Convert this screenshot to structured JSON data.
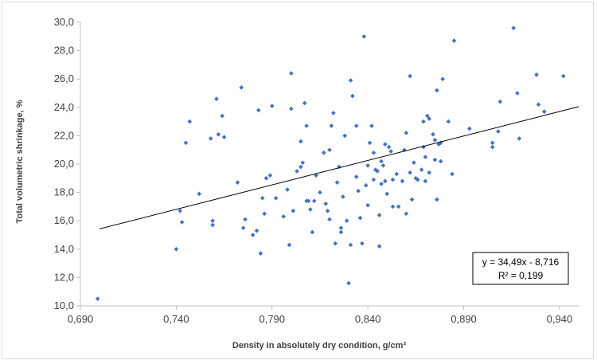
{
  "chart_data": {
    "type": "scatter",
    "xlabel": "Density in absolutely dry condition, g/cm³",
    "ylabel": "Total volumetric shrinkage, %",
    "xlim": [
      0.69,
      0.95
    ],
    "ylim": [
      10.0,
      30.0
    ],
    "x_ticks": [
      "0,690",
      "0,740",
      "0,790",
      "0,840",
      "0,890",
      "0,940"
    ],
    "y_ticks": [
      "10,0",
      "12,0",
      "14,0",
      "16,0",
      "18,0",
      "20,0",
      "22,0",
      "24,0",
      "26,0",
      "28,0",
      "30,0"
    ],
    "grid": "none",
    "marker_color": "#4472c4",
    "trendline": {
      "slope": 34.49,
      "intercept": -8.716,
      "equation": "y = 34,49x - 8,716",
      "r_squared": "R² = 0,199",
      "color": "#000000"
    },
    "points": [
      [
        0.699,
        10.5
      ],
      [
        0.74,
        14.0
      ],
      [
        0.742,
        16.7
      ],
      [
        0.743,
        15.9
      ],
      [
        0.745,
        21.5
      ],
      [
        0.747,
        23.0
      ],
      [
        0.752,
        17.9
      ],
      [
        0.758,
        21.8
      ],
      [
        0.759,
        15.7
      ],
      [
        0.759,
        16.0
      ],
      [
        0.761,
        24.6
      ],
      [
        0.762,
        22.1
      ],
      [
        0.764,
        23.4
      ],
      [
        0.765,
        21.9
      ],
      [
        0.772,
        18.7
      ],
      [
        0.774,
        25.4
      ],
      [
        0.775,
        15.5
      ],
      [
        0.776,
        16.1
      ],
      [
        0.78,
        15.0
      ],
      [
        0.782,
        15.3
      ],
      [
        0.783,
        23.8
      ],
      [
        0.784,
        13.7
      ],
      [
        0.785,
        17.6
      ],
      [
        0.786,
        16.5
      ],
      [
        0.787,
        19.0
      ],
      [
        0.789,
        19.2
      ],
      [
        0.79,
        24.1
      ],
      [
        0.792,
        17.6
      ],
      [
        0.796,
        16.3
      ],
      [
        0.798,
        18.2
      ],
      [
        0.799,
        14.3
      ],
      [
        0.8,
        26.4
      ],
      [
        0.8,
        23.9
      ],
      [
        0.801,
        16.7
      ],
      [
        0.803,
        19.5
      ],
      [
        0.805,
        19.8
      ],
      [
        0.805,
        21.6
      ],
      [
        0.806,
        20.1
      ],
      [
        0.807,
        24.3
      ],
      [
        0.808,
        22.7
      ],
      [
        0.808,
        17.4
      ],
      [
        0.809,
        17.4
      ],
      [
        0.81,
        16.8
      ],
      [
        0.811,
        15.2
      ],
      [
        0.812,
        17.4
      ],
      [
        0.813,
        19.2
      ],
      [
        0.815,
        18.0
      ],
      [
        0.817,
        20.8
      ],
      [
        0.818,
        17.2
      ],
      [
        0.819,
        16.7
      ],
      [
        0.82,
        16.1
      ],
      [
        0.82,
        21.0
      ],
      [
        0.821,
        22.7
      ],
      [
        0.822,
        23.6
      ],
      [
        0.823,
        14.4
      ],
      [
        0.824,
        18.7
      ],
      [
        0.825,
        19.8
      ],
      [
        0.826,
        15.2
      ],
      [
        0.826,
        15.5
      ],
      [
        0.827,
        17.7
      ],
      [
        0.828,
        22.0
      ],
      [
        0.829,
        16.0
      ],
      [
        0.83,
        11.6
      ],
      [
        0.831,
        14.3
      ],
      [
        0.831,
        25.9
      ],
      [
        0.832,
        24.8
      ],
      [
        0.834,
        22.7
      ],
      [
        0.834,
        19.1
      ],
      [
        0.835,
        18.1
      ],
      [
        0.836,
        16.2
      ],
      [
        0.837,
        14.4
      ],
      [
        0.838,
        29.0
      ],
      [
        0.839,
        18.5
      ],
      [
        0.84,
        19.9
      ],
      [
        0.84,
        17.1
      ],
      [
        0.841,
        21.5
      ],
      [
        0.842,
        22.7
      ],
      [
        0.843,
        20.8
      ],
      [
        0.843,
        18.9
      ],
      [
        0.844,
        19.6
      ],
      [
        0.845,
        19.5
      ],
      [
        0.846,
        14.2
      ],
      [
        0.846,
        16.4
      ],
      [
        0.847,
        18.6
      ],
      [
        0.847,
        20.2
      ],
      [
        0.848,
        19.9
      ],
      [
        0.849,
        18.8
      ],
      [
        0.849,
        21.4
      ],
      [
        0.85,
        17.9
      ],
      [
        0.851,
        21.2
      ],
      [
        0.852,
        20.9
      ],
      [
        0.853,
        18.9
      ],
      [
        0.853,
        17.0
      ],
      [
        0.855,
        19.3
      ],
      [
        0.856,
        17.0
      ],
      [
        0.858,
        18.8
      ],
      [
        0.859,
        21.0
      ],
      [
        0.86,
        22.2
      ],
      [
        0.86,
        16.5
      ],
      [
        0.862,
        26.2
      ],
      [
        0.862,
        19.4
      ],
      [
        0.863,
        17.5
      ],
      [
        0.864,
        20.1
      ],
      [
        0.865,
        19.0
      ],
      [
        0.866,
        18.9
      ],
      [
        0.868,
        19.6
      ],
      [
        0.869,
        21.2
      ],
      [
        0.869,
        23.0
      ],
      [
        0.87,
        20.5
      ],
      [
        0.87,
        18.8
      ],
      [
        0.871,
        23.4
      ],
      [
        0.872,
        23.2
      ],
      [
        0.872,
        19.4
      ],
      [
        0.874,
        22.1
      ],
      [
        0.875,
        21.7
      ],
      [
        0.875,
        20.3
      ],
      [
        0.876,
        25.2
      ],
      [
        0.876,
        17.5
      ],
      [
        0.877,
        21.4
      ],
      [
        0.878,
        21.5
      ],
      [
        0.878,
        20.2
      ],
      [
        0.879,
        26.0
      ],
      [
        0.882,
        23.0
      ],
      [
        0.884,
        19.3
      ],
      [
        0.885,
        28.7
      ],
      [
        0.893,
        22.5
      ],
      [
        0.905,
        21.5
      ],
      [
        0.905,
        21.2
      ],
      [
        0.908,
        22.3
      ],
      [
        0.909,
        24.4
      ],
      [
        0.916,
        29.6
      ],
      [
        0.918,
        25.0
      ],
      [
        0.919,
        21.8
      ],
      [
        0.928,
        26.3
      ],
      [
        0.929,
        24.2
      ],
      [
        0.932,
        23.7
      ],
      [
        0.942,
        26.2
      ]
    ]
  }
}
